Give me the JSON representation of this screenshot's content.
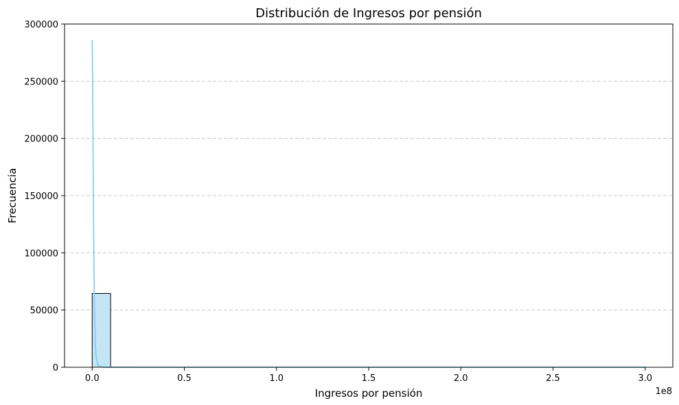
{
  "chart_data": {
    "type": "bar",
    "title": "Distribución de Ingresos por pensión",
    "xlabel": "Ingresos por pensión",
    "ylabel": "Frecuencia",
    "x_offset_text": "1e8",
    "xlim": [
      -15000000,
      315000000
    ],
    "ylim": [
      0,
      300000
    ],
    "x_ticks": [
      0,
      50000000,
      100000000,
      150000000,
      200000000,
      250000000,
      300000000
    ],
    "x_tick_labels": [
      "0.0",
      "0.5",
      "1.0",
      "1.5",
      "2.0",
      "2.5",
      "3.0"
    ],
    "y_ticks": [
      0,
      50000,
      100000,
      150000,
      200000,
      250000,
      300000
    ],
    "y_tick_labels": [
      "0",
      "50000",
      "100000",
      "150000",
      "200000",
      "250000",
      "300000"
    ],
    "grid": {
      "axis": "y",
      "style": "dashed"
    },
    "histogram": {
      "bin_start": 0,
      "bin_width": 10000000,
      "counts": [
        64500,
        30,
        10,
        5,
        3,
        2,
        1,
        1,
        1,
        1,
        0,
        0,
        1,
        0,
        0,
        0,
        0,
        0,
        0,
        0,
        0,
        0,
        0,
        0,
        0,
        0,
        0,
        0,
        0,
        1
      ]
    },
    "kde": {
      "x": [
        0,
        150000,
        300000,
        500000,
        700000,
        1000000,
        1300000,
        1700000,
        2200000,
        3000000,
        4000000,
        6000000,
        10000000,
        50000000,
        100000000,
        200000000,
        300000000
      ],
      "y": [
        286000,
        272000,
        235000,
        182000,
        132000,
        80000,
        45000,
        20000,
        8000,
        2000,
        500,
        100,
        0,
        0,
        0,
        0,
        0
      ]
    },
    "colors": {
      "bar_fill": "#c3e5f4",
      "bar_edge": "#000000",
      "kde_line": "#87ceeb",
      "grid": "#c8c8c8"
    }
  }
}
